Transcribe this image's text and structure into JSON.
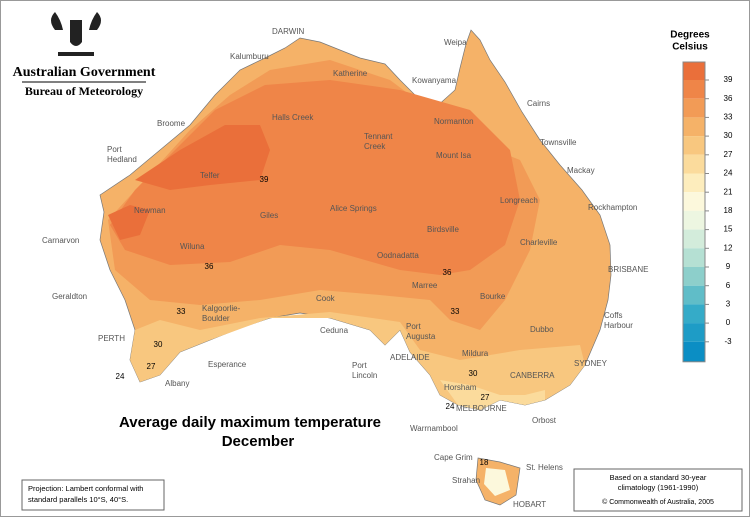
{
  "header": {
    "government": "Australian Government",
    "bureau": "Bureau of Meteorology"
  },
  "title": "Average daily maximum temperature",
  "subtitle": "December",
  "legend": {
    "title": [
      "Degrees",
      "Celsius"
    ],
    "ticks": [
      39,
      36,
      33,
      30,
      27,
      24,
      21,
      18,
      15,
      12,
      9,
      6,
      3,
      0,
      -3
    ],
    "colors": [
      "#ea6f3a",
      "#ef8548",
      "#f29b56",
      "#f5b268",
      "#f8c77f",
      "#fbdb9c",
      "#fdedbd",
      "#fcf8dc",
      "#edf6e1",
      "#d3ecdb",
      "#b5e0d3",
      "#8dcfcb",
      "#60bdc8",
      "#35abc8",
      "#1e9cc6",
      "#0b8ec4"
    ]
  },
  "places": [
    {
      "name": "DARWIN"
    },
    {
      "name": "Weipa"
    },
    {
      "name": "Kalumburu"
    },
    {
      "name": "Katherine"
    },
    {
      "name": "Kowanyama"
    },
    {
      "name": "Cairns"
    },
    {
      "name": "Broome"
    },
    {
      "name": "Halls Creek"
    },
    {
      "name": "Normanton"
    },
    {
      "name": [
        "Tennant",
        "Creek"
      ]
    },
    {
      "name": "Townsville"
    },
    {
      "name": [
        "Port",
        "Hedland"
      ]
    },
    {
      "name": "Mount Isa"
    },
    {
      "name": "Mackay"
    },
    {
      "name": "Telfer"
    },
    {
      "name": "Longreach"
    },
    {
      "name": "Rockhampton"
    },
    {
      "name": "Newman"
    },
    {
      "name": "Giles"
    },
    {
      "name": "Alice Springs"
    },
    {
      "name": "Birdsville"
    },
    {
      "name": "Charleville"
    },
    {
      "name": "Carnarvon"
    },
    {
      "name": "Wiluna"
    },
    {
      "name": "Oodnadatta"
    },
    {
      "name": "BRISBANE"
    },
    {
      "name": "Marree"
    },
    {
      "name": "Bourke"
    },
    {
      "name": "Geraldton"
    },
    {
      "name": [
        "Kalgoorlie-",
        "Boulder"
      ]
    },
    {
      "name": "Cook"
    },
    {
      "name": [
        "Coffs",
        "Harbour"
      ]
    },
    {
      "name": "PERTH"
    },
    {
      "name": "Ceduna"
    },
    {
      "name": [
        "Port",
        "Augusta"
      ]
    },
    {
      "name": "Dubbo"
    },
    {
      "name": "ADELAIDE"
    },
    {
      "name": "Mildura"
    },
    {
      "name": "SYDNEY"
    },
    {
      "name": "Esperance"
    },
    {
      "name": [
        "Port",
        "Lincoln"
      ]
    },
    {
      "name": "CANBERRA"
    },
    {
      "name": "Albany"
    },
    {
      "name": "Horsham"
    },
    {
      "name": "MELBOURNE"
    },
    {
      "name": "Warrnambool"
    },
    {
      "name": "Orbost"
    },
    {
      "name": "Cape Grim"
    },
    {
      "name": "St. Helens"
    },
    {
      "name": "Strahan"
    },
    {
      "name": "HOBART"
    }
  ],
  "contour_labels": [
    39,
    36,
    36,
    33,
    33,
    30,
    30,
    27,
    27,
    24,
    24,
    18
  ],
  "projection_note": [
    "Projection: Lambert conformal with",
    "standard parallels 10°S, 40°S."
  ],
  "climatology_note": [
    "Based on a standard 30-year",
    "climatology (1961-1990)"
  ],
  "copyright": "© Commonwealth of Australia, 2005"
}
